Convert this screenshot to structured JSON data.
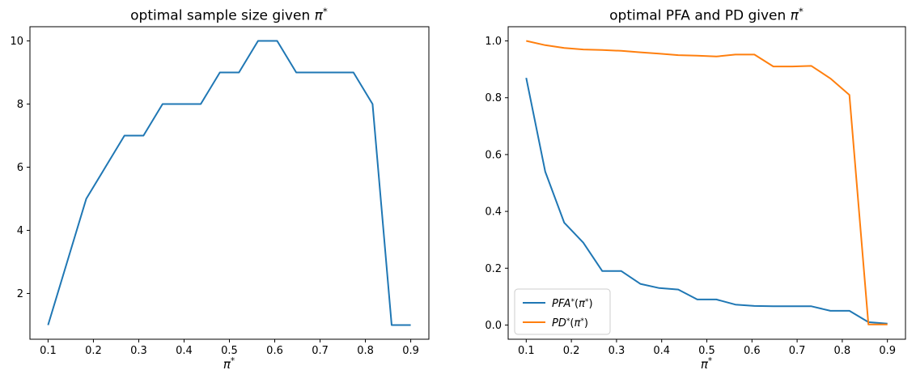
{
  "figure": {
    "background": "#ffffff",
    "axis_color": "#000000",
    "tick_label_color": "#000000"
  },
  "chart_data": [
    {
      "type": "line",
      "title": "optimal sample size given π*",
      "title_parts": [
        {
          "t": "optimal sample size given "
        },
        {
          "t": "π",
          "i": true
        },
        {
          "t": "*",
          "sup": true
        }
      ],
      "xlabel": "π*",
      "xlabel_parts": [
        {
          "t": "π",
          "i": true
        },
        {
          "t": "*",
          "sup": true
        }
      ],
      "ylabel": "",
      "grid": false,
      "xlim": [
        0.06,
        0.94
      ],
      "ylim": [
        0.55,
        10.45
      ],
      "xticks": [
        0.1,
        0.2,
        0.3,
        0.4,
        0.5,
        0.6,
        0.7,
        0.8,
        0.9
      ],
      "xtick_labels": [
        "0.1",
        "0.2",
        "0.3",
        "0.4",
        "0.5",
        "0.6",
        "0.7",
        "0.8",
        "0.9"
      ],
      "yticks": [
        2,
        4,
        6,
        8,
        10
      ],
      "ytick_labels": [
        "2",
        "4",
        "6",
        "8",
        "10"
      ],
      "x": [
        0.1,
        0.1421,
        0.1842,
        0.2263,
        0.2684,
        0.3105,
        0.3526,
        0.3947,
        0.4368,
        0.4789,
        0.5211,
        0.5632,
        0.6053,
        0.6474,
        0.6895,
        0.7316,
        0.7737,
        0.8158,
        0.8579,
        0.9
      ],
      "series": [
        {
          "id": "sample-size",
          "name": "optimal sample size",
          "color": "#1f77b4",
          "values": [
            1,
            3,
            5,
            6,
            7,
            7,
            8,
            8,
            8,
            9,
            9,
            10,
            10,
            9,
            9,
            9,
            9,
            8,
            1,
            1
          ]
        }
      ],
      "legend": null
    },
    {
      "type": "line",
      "title": "optimal PFA and PD given π*",
      "title_parts": [
        {
          "t": "optimal PFA and PD given "
        },
        {
          "t": "π",
          "i": true
        },
        {
          "t": "*",
          "sup": true
        }
      ],
      "xlabel": "π*",
      "xlabel_parts": [
        {
          "t": "π",
          "i": true
        },
        {
          "t": "*",
          "sup": true
        }
      ],
      "ylabel": "",
      "grid": false,
      "xlim": [
        0.06,
        0.94
      ],
      "ylim": [
        -0.05,
        1.05
      ],
      "xticks": [
        0.1,
        0.2,
        0.3,
        0.4,
        0.5,
        0.6,
        0.7,
        0.8,
        0.9
      ],
      "xtick_labels": [
        "0.1",
        "0.2",
        "0.3",
        "0.4",
        "0.5",
        "0.6",
        "0.7",
        "0.8",
        "0.9"
      ],
      "yticks": [
        0.0,
        0.2,
        0.4,
        0.6,
        0.8,
        1.0
      ],
      "ytick_labels": [
        "0.0",
        "0.2",
        "0.4",
        "0.6",
        "0.8",
        "1.0"
      ],
      "x": [
        0.1,
        0.1421,
        0.1842,
        0.2263,
        0.2684,
        0.3105,
        0.3526,
        0.3947,
        0.4368,
        0.4789,
        0.5211,
        0.5632,
        0.6053,
        0.6474,
        0.6895,
        0.7316,
        0.7737,
        0.8158,
        0.8579,
        0.9
      ],
      "series": [
        {
          "id": "pfa",
          "name": "PFA*(π*)",
          "label_parts": [
            {
              "t": "PFA",
              "i": true
            },
            {
              "t": "*",
              "sup": true
            },
            {
              "t": "("
            },
            {
              "t": "π",
              "i": true
            },
            {
              "t": "*",
              "sup": true
            },
            {
              "t": ")"
            }
          ],
          "color": "#1f77b4",
          "values": [
            0.87,
            0.54,
            0.36,
            0.29,
            0.19,
            0.19,
            0.145,
            0.13,
            0.125,
            0.09,
            0.09,
            0.072,
            0.067,
            0.066,
            0.066,
            0.066,
            0.05,
            0.05,
            0.01,
            0.005
          ]
        },
        {
          "id": "pd",
          "name": "PD*(π*)",
          "label_parts": [
            {
              "t": "PD",
              "i": true
            },
            {
              "t": "*",
              "sup": true
            },
            {
              "t": "("
            },
            {
              "t": "π",
              "i": true
            },
            {
              "t": "*",
              "sup": true
            },
            {
              "t": ")"
            }
          ],
          "color": "#ff7f0e",
          "values": [
            1.0,
            0.985,
            0.975,
            0.97,
            0.968,
            0.965,
            0.96,
            0.955,
            0.95,
            0.948,
            0.945,
            0.952,
            0.952,
            0.91,
            0.91,
            0.912,
            0.868,
            0.81,
            0.002,
            0.002
          ]
        }
      ],
      "legend": {
        "position": "lower left",
        "border_color": "#cccccc",
        "background": "#ffffff"
      }
    }
  ]
}
